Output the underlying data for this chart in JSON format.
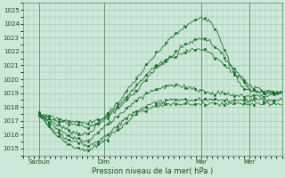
{
  "xlabel": "Pression niveau de la mer( hPa )",
  "ylim": [
    1014.5,
    1025.5
  ],
  "xlim": [
    0,
    96
  ],
  "yticks": [
    1015,
    1016,
    1017,
    1018,
    1019,
    1020,
    1021,
    1022,
    1023,
    1024,
    1025
  ],
  "xtick_labels": [
    "Sarbun",
    "Dim",
    "Mar",
    "Mer"
  ],
  "xtick_positions": [
    6,
    30,
    66,
    84
  ],
  "day_lines": [
    6,
    30,
    66,
    84
  ],
  "bg_color": "#cde8d8",
  "grid_color": "#a0c8b0",
  "line_color": "#1a6b2a",
  "figsize": [
    3.2,
    2.0
  ],
  "dpi": 100,
  "scenarios": [
    {
      "x": [
        6,
        12,
        18,
        24,
        30,
        36,
        42,
        48,
        54,
        60,
        66,
        69,
        72,
        75,
        78,
        81,
        84,
        90,
        96
      ],
      "y": [
        1017.5,
        1016.8,
        1016.2,
        1016.0,
        1017.2,
        1018.5,
        1020.0,
        1021.5,
        1022.8,
        1023.8,
        1024.5,
        1024.3,
        1023.5,
        1022.0,
        1020.5,
        1019.5,
        1019.2,
        1019.0,
        1019.0
      ]
    },
    {
      "x": [
        6,
        12,
        18,
        24,
        30,
        36,
        42,
        48,
        54,
        60,
        66,
        69,
        72,
        75,
        78,
        81,
        84,
        90,
        96
      ],
      "y": [
        1017.5,
        1017.0,
        1016.8,
        1016.5,
        1017.0,
        1018.0,
        1019.2,
        1020.5,
        1021.5,
        1022.5,
        1023.0,
        1022.8,
        1022.2,
        1021.5,
        1020.8,
        1020.2,
        1019.5,
        1019.2,
        1019.0
      ]
    },
    {
      "x": [
        6,
        12,
        18,
        24,
        30,
        36,
        42,
        48,
        54,
        60,
        66,
        69,
        72,
        75,
        78,
        81,
        84,
        90,
        96
      ],
      "y": [
        1017.5,
        1017.2,
        1017.0,
        1016.8,
        1017.2,
        1018.2,
        1019.5,
        1020.8,
        1021.5,
        1022.0,
        1022.2,
        1022.0,
        1021.5,
        1021.0,
        1020.5,
        1020.0,
        1019.2,
        1019.0,
        1019.0
      ]
    },
    {
      "x": [
        6,
        12,
        18,
        24,
        30,
        36,
        42,
        48,
        54,
        60,
        66,
        69,
        72,
        75,
        78,
        81,
        84,
        90,
        96
      ],
      "y": [
        1017.5,
        1016.5,
        1015.8,
        1015.5,
        1016.5,
        1017.5,
        1018.5,
        1019.2,
        1019.5,
        1019.5,
        1019.2,
        1019.0,
        1019.0,
        1019.0,
        1018.8,
        1018.8,
        1018.8,
        1018.8,
        1019.0
      ]
    },
    {
      "x": [
        6,
        12,
        18,
        24,
        30,
        36,
        42,
        48,
        54,
        60,
        66,
        69,
        72,
        75,
        78,
        81,
        84,
        90,
        96
      ],
      "y": [
        1017.5,
        1016.0,
        1015.2,
        1014.8,
        1015.5,
        1016.5,
        1017.5,
        1018.0,
        1018.2,
        1018.2,
        1018.2,
        1018.2,
        1018.2,
        1018.2,
        1018.2,
        1018.2,
        1018.2,
        1018.2,
        1018.2
      ]
    },
    {
      "x": [
        6,
        12,
        18,
        24,
        30,
        36,
        42,
        48,
        54,
        60,
        66,
        69,
        72,
        75,
        78,
        81,
        84,
        90,
        96
      ],
      "y": [
        1017.5,
        1016.2,
        1015.5,
        1015.2,
        1015.8,
        1016.8,
        1017.8,
        1018.2,
        1018.5,
        1018.5,
        1018.5,
        1018.5,
        1018.5,
        1018.5,
        1018.5,
        1018.5,
        1018.5,
        1018.5,
        1018.5
      ]
    }
  ]
}
